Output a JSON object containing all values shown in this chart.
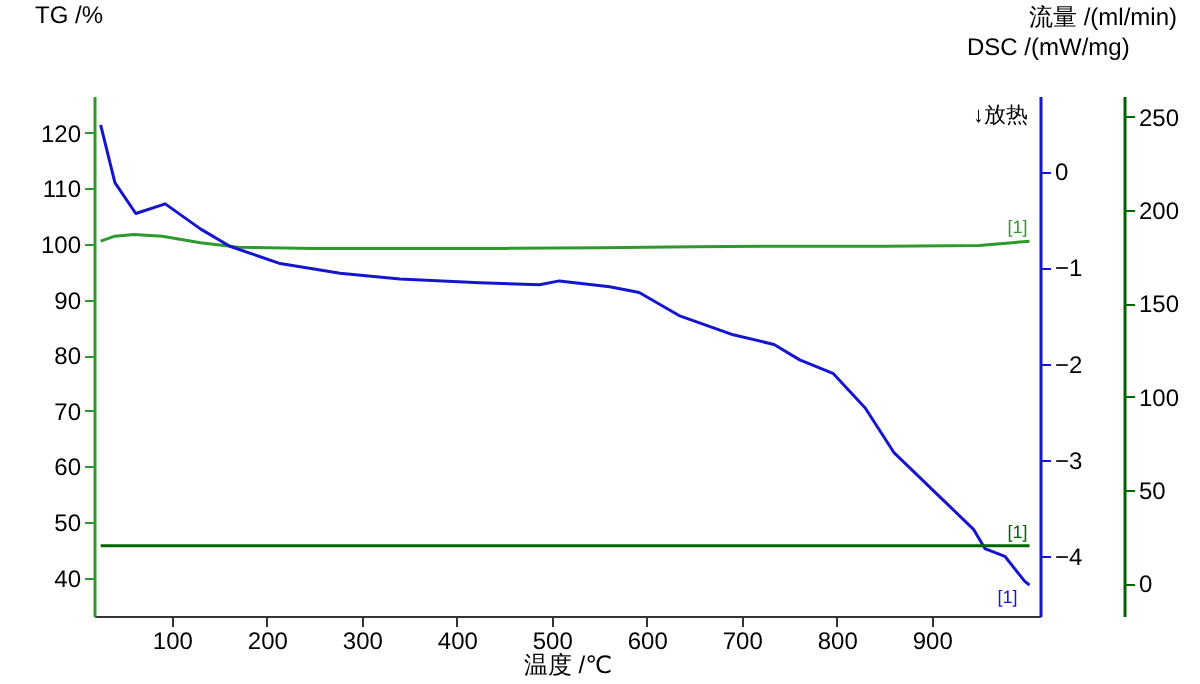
{
  "chart_data": {
    "type": "line",
    "xlabel": "温度 /℃",
    "ylabel": "TG /%",
    "y2label": "DSC /(mW/mg)",
    "y3label": "流量 /(ml/min)",
    "annotations": [
      "↓放热"
    ],
    "xlim": [
      18,
      1014
    ],
    "xticks": [
      100,
      200,
      300,
      400,
      500,
      600,
      700,
      800,
      900
    ],
    "ylim": [
      33.1,
      126.6
    ],
    "yticks": [
      40,
      50,
      60,
      70,
      80,
      90,
      100,
      110,
      120
    ],
    "y2lim": [
      -4.62,
      0.78
    ],
    "y2ticks": [
      -4,
      -3,
      -2,
      -1,
      0
    ],
    "y3lim": [
      -17.6,
      261
    ],
    "y3ticks": [
      0,
      50,
      100,
      150,
      200,
      250
    ],
    "grid": false,
    "series": [
      {
        "name": "[1]",
        "color": "#2e9a2e",
        "axis": "y",
        "x": [
          25,
          40,
          60,
          90,
          130,
          170,
          250,
          350,
          450,
          550,
          650,
          750,
          850,
          950,
          1003
        ],
        "values": [
          100.5,
          101.4,
          101.7,
          101.4,
          100.2,
          99.4,
          99.2,
          99.2,
          99.2,
          99.3,
          99.5,
          99.6,
          99.6,
          99.7,
          100.5
        ]
      },
      {
        "name": "[1]",
        "color": "#1515d0",
        "axis": "y2",
        "x": [
          25,
          40,
          62,
          93,
          130,
          161,
          214,
          277,
          340,
          424,
          487,
          508,
          561,
          592,
          634,
          691,
          734,
          761,
          796,
          830,
          860,
          902,
          944,
          956,
          977,
          998,
          1003
        ],
        "values": [
          0.48,
          -0.12,
          -0.44,
          -0.34,
          -0.6,
          -0.78,
          -0.96,
          -1.06,
          -1.12,
          -1.16,
          -1.18,
          -1.14,
          -1.2,
          -1.26,
          -1.5,
          -1.7,
          -1.8,
          -1.96,
          -2.1,
          -2.46,
          -2.92,
          -3.32,
          -3.72,
          -3.92,
          -4.0,
          -4.26,
          -4.3
        ]
      },
      {
        "name": "[1]",
        "color": "#006400",
        "axis": "y3",
        "x": [
          25,
          1003
        ],
        "values": [
          20,
          20
        ]
      }
    ]
  }
}
